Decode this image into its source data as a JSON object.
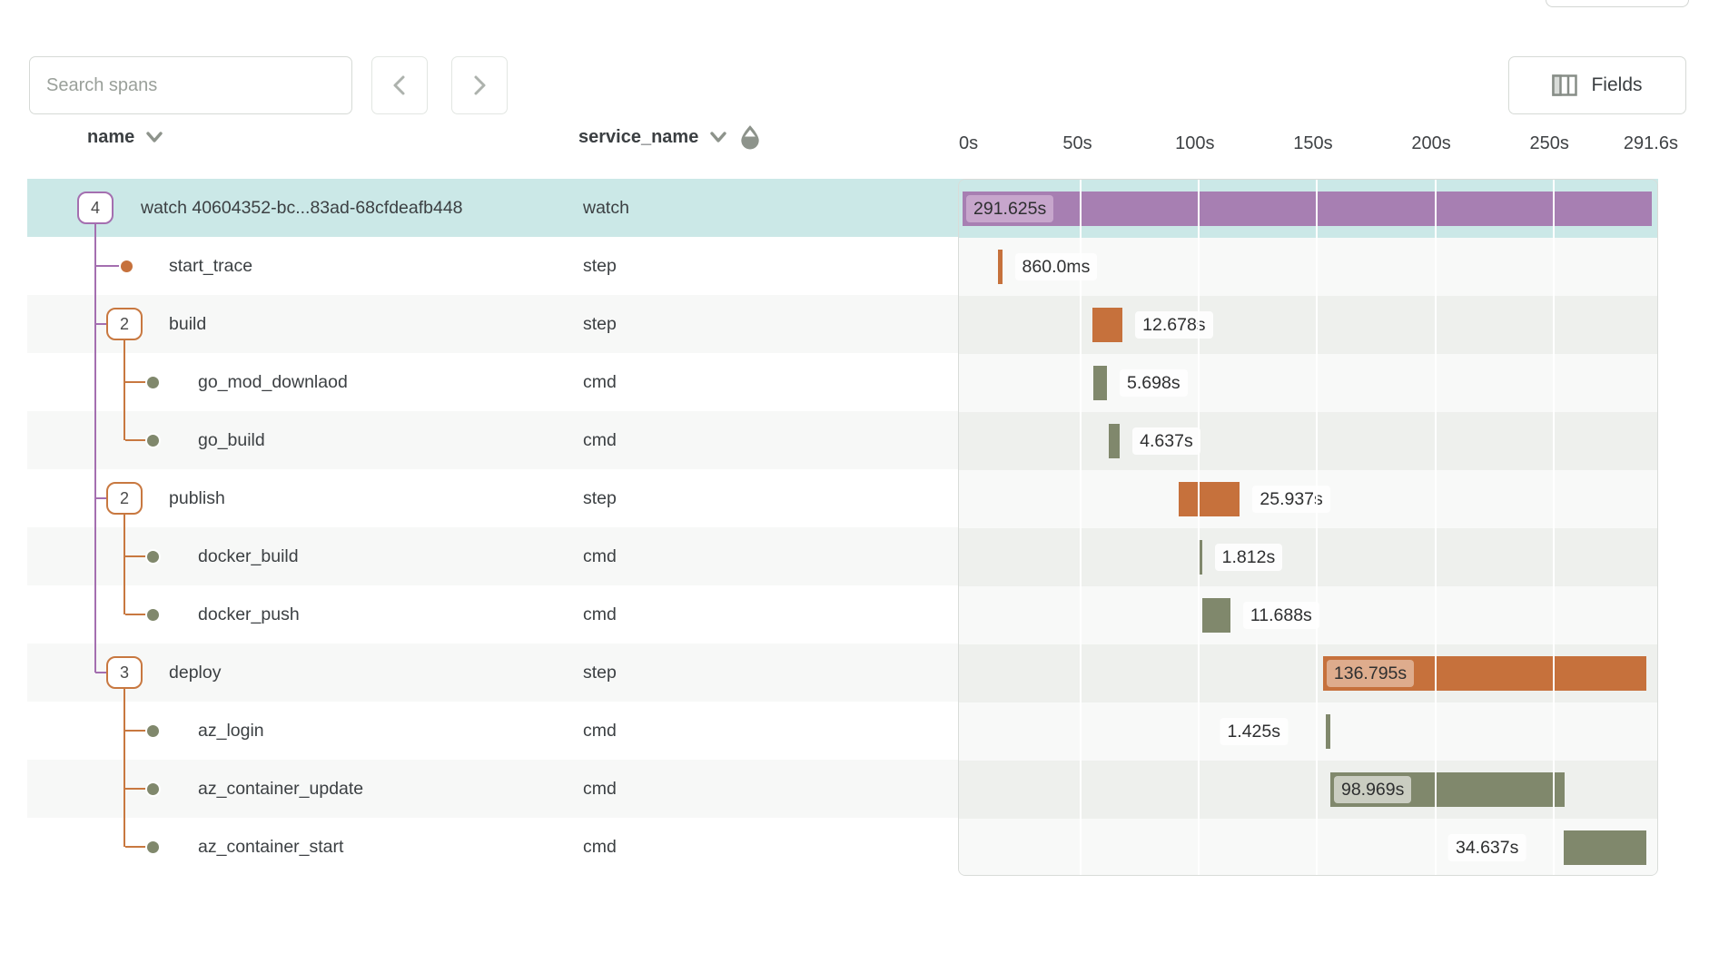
{
  "toolbar": {
    "search_placeholder": "Search spans",
    "fields_label": "Fields"
  },
  "columns": {
    "name": "name",
    "service": "service_name"
  },
  "timeline": {
    "total_seconds": 291.625,
    "ticks": [
      {
        "label": "0s",
        "seconds": 0
      },
      {
        "label": "50s",
        "seconds": 50
      },
      {
        "label": "100s",
        "seconds": 100
      },
      {
        "label": "150s",
        "seconds": 150
      },
      {
        "label": "200s",
        "seconds": 200
      },
      {
        "label": "250s",
        "seconds": 250
      },
      {
        "label": "291.6s",
        "seconds": 291.6
      }
    ]
  },
  "colors": {
    "selected_row": "#cbe8e7",
    "row_alt": "#f7f8f7",
    "row_plain": "#ffffff",
    "chart_alt": "#eef0ed",
    "chart_plain": "#f8f9f8",
    "bar": {
      "purple": "#a77fb2",
      "orange": "#c6713c",
      "olive": "#80886c"
    },
    "line": {
      "purple": "#a46fb0",
      "orange": "#c87840"
    },
    "pill": {
      "inside_purple": "#c7a6cc",
      "inside_orange": "rgba(255,255,255,0.42)",
      "inside_olive": "rgba(255,255,255,0.58)",
      "outside": "rgba(255,255,255,0.85)"
    }
  },
  "chart_data": {
    "type": "gantt-waterfall",
    "x_axis_unit": "seconds",
    "x_range": [
      0,
      291.6
    ],
    "spans": [
      {
        "name": "watch 40604352-bc...83ad-68cfdeafb448",
        "service": "watch",
        "level": 0,
        "marker": "badge",
        "badge": "4",
        "color": "purple",
        "start_s": 0,
        "duration_s": 291.625,
        "duration_label": "291.625s",
        "label_pos": "inside",
        "selected": true
      },
      {
        "name": "start_trace",
        "service": "step",
        "level": 1,
        "marker": "dot",
        "color": "orange",
        "start_s": 15.0,
        "duration_s": 0.86,
        "duration_label": "860.0ms",
        "label_pos": "right"
      },
      {
        "name": "build",
        "service": "step",
        "level": 1,
        "marker": "badge",
        "badge": "2",
        "color": "orange",
        "start_s": 55.0,
        "duration_s": 12.678,
        "duration_label": "12.678s",
        "label_pos": "right"
      },
      {
        "name": "go_mod_downlaod",
        "service": "cmd",
        "level": 2,
        "marker": "dot",
        "color": "olive",
        "start_s": 55.4,
        "duration_s": 5.698,
        "duration_label": "5.698s",
        "label_pos": "right"
      },
      {
        "name": "go_build",
        "service": "cmd",
        "level": 2,
        "marker": "dot",
        "color": "olive",
        "start_s": 61.9,
        "duration_s": 4.637,
        "duration_label": "4.637s",
        "label_pos": "right"
      },
      {
        "name": "publish",
        "service": "step",
        "level": 1,
        "marker": "badge",
        "badge": "2",
        "color": "orange",
        "start_s": 91.4,
        "duration_s": 25.937,
        "duration_label": "25.937s",
        "label_pos": "right"
      },
      {
        "name": "docker_build",
        "service": "cmd",
        "level": 2,
        "marker": "dot",
        "color": "olive",
        "start_s": 99.5,
        "duration_s": 1.812,
        "duration_label": "1.812s",
        "label_pos": "right"
      },
      {
        "name": "docker_push",
        "service": "cmd",
        "level": 2,
        "marker": "dot",
        "color": "olive",
        "start_s": 101.6,
        "duration_s": 11.688,
        "duration_label": "11.688s",
        "label_pos": "right"
      },
      {
        "name": "deploy",
        "service": "step",
        "level": 1,
        "marker": "badge",
        "badge": "3",
        "color": "orange",
        "start_s": 152.5,
        "duration_s": 136.795,
        "duration_label": "136.795s",
        "label_pos": "inside"
      },
      {
        "name": "az_login",
        "service": "cmd",
        "level": 2,
        "marker": "dot",
        "color": "olive",
        "start_s": 153.7,
        "duration_s": 1.425,
        "duration_label": "1.425s",
        "label_pos": "left"
      },
      {
        "name": "az_container_update",
        "service": "cmd",
        "level": 2,
        "marker": "dot",
        "color": "olive",
        "start_s": 155.6,
        "duration_s": 98.969,
        "duration_label": "98.969s",
        "label_pos": "inside"
      },
      {
        "name": "az_container_start",
        "service": "cmd",
        "level": 2,
        "marker": "dot",
        "color": "olive",
        "start_s": 254.5,
        "duration_s": 34.637,
        "duration_label": "34.637s",
        "label_pos": "left"
      }
    ]
  }
}
